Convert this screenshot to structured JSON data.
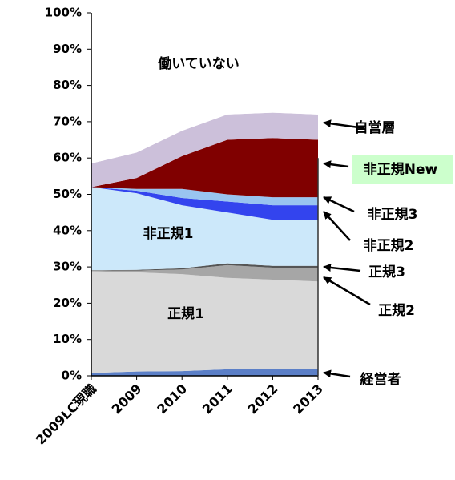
{
  "chart_data": {
    "type": "stacked_area",
    "categories": [
      "2009LC現職",
      "2009",
      "2010",
      "2011",
      "2012",
      "2013"
    ],
    "series": [
      {
        "name": "経営者",
        "color": "#5b7fc7",
        "values": [
          0.8,
          1.2,
          1.3,
          1.8,
          1.8,
          1.8
        ]
      },
      {
        "name": "正規1",
        "color": "#d9d9d9",
        "values": [
          28,
          27.3,
          26.7,
          25.2,
          24.7,
          24.2
        ]
      },
      {
        "name": "正規2",
        "color": "#a6a6a6",
        "values": [
          0.2,
          0.5,
          1.3,
          3.5,
          3.3,
          3.8
        ]
      },
      {
        "name": "正規3",
        "color": "#555555",
        "values": [
          0.1,
          0.2,
          0.3,
          0.5,
          0.5,
          0.5
        ]
      },
      {
        "name": "非正規1",
        "color": "#cce8fa",
        "values": [
          22.9,
          21.1,
          17.4,
          14,
          12.7,
          12.7
        ]
      },
      {
        "name": "非正規2",
        "color": "#3344ee",
        "values": [
          0,
          0.7,
          2,
          3,
          4,
          4
        ]
      },
      {
        "name": "非正規3",
        "color": "#99c4f0",
        "values": [
          0,
          0.5,
          2.5,
          2,
          2.2,
          2.2
        ]
      },
      {
        "name": "非正規New",
        "color": "#800000",
        "values": [
          0,
          3,
          9,
          15,
          16.3,
          15.8
        ]
      },
      {
        "name": "自営層",
        "color": "#ccc0da",
        "values": [
          6.5,
          7,
          7,
          7,
          7,
          7
        ]
      },
      {
        "name": "働いていない",
        "color": "#ffffff",
        "values": [
          41.5,
          38.5,
          32.5,
          28,
          27.5,
          28
        ]
      }
    ],
    "ylim": [
      0,
      100
    ],
    "yticks": [
      {
        "value": 0,
        "label": "0%"
      },
      {
        "value": 10,
        "label": "10%"
      },
      {
        "value": 20,
        "label": "20%"
      },
      {
        "value": 30,
        "label": "30%"
      },
      {
        "value": 40,
        "label": "40%"
      },
      {
        "value": 50,
        "label": "50%"
      },
      {
        "value": 60,
        "label": "60%"
      },
      {
        "value": 70,
        "label": "70%"
      },
      {
        "value": 80,
        "label": "80%"
      },
      {
        "value": 90,
        "label": "90%"
      },
      {
        "value": 100,
        "label": "100%"
      }
    ]
  }
}
